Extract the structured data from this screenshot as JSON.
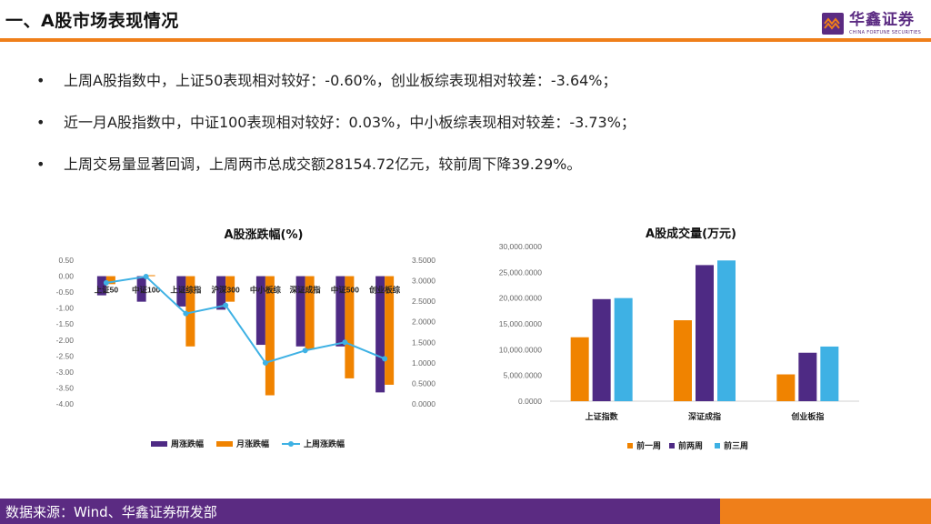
{
  "header": {
    "title": "一、A股市场表现情况",
    "logo_cn": "华鑫证券",
    "logo_en": "CHINA FORTUNE SECURITIES"
  },
  "bullets": [
    "上周A股指数中，上证50表现相对较好：-0.60%，创业板综表现相对较差：-3.64%；",
    "近一月A股指数中，中证100表现相对较好：0.03%，中小板综表现相对较差：-3.73%；",
    "上周交易量显著回调，上周两市总成交额28154.72亿元，较前周下降39.29%。"
  ],
  "bullet_symbol": "•",
  "footer": {
    "source": "数据来源：Wind、华鑫证券研发部"
  },
  "colors": {
    "purple": "#4e2a84",
    "orange": "#f08300",
    "cyan": "#3eb1e4",
    "brand_orange": "#ef7f1a",
    "brand_purple": "#5b2b82"
  },
  "chart_data": [
    {
      "type": "bar",
      "title": "A股涨跌幅(%)",
      "categories": [
        "上证50",
        "中证100",
        "上证综指",
        "沪深300",
        "中小板综",
        "深证成指",
        "中证500",
        "创业板综"
      ],
      "series": [
        {
          "name": "周涨跌幅",
          "type": "bar",
          "axis": "left",
          "values": [
            -0.6,
            -0.8,
            -0.95,
            -1.05,
            -2.15,
            -2.2,
            -2.2,
            -3.64
          ]
        },
        {
          "name": "月涨跌幅",
          "type": "bar",
          "axis": "left",
          "values": [
            -0.25,
            0.03,
            -2.2,
            -0.8,
            -3.73,
            -2.3,
            -3.2,
            -3.4
          ]
        },
        {
          "name": "上周涨跌幅",
          "type": "line",
          "axis": "right",
          "values": [
            2.95,
            3.1,
            2.2,
            2.4,
            1.0,
            1.3,
            1.5,
            1.1
          ]
        }
      ],
      "y_left": {
        "ticks": [
          "0.50",
          "0.00",
          "-0.50",
          "-1.00",
          "-1.50",
          "-2.00",
          "-2.50",
          "-3.00",
          "-3.50",
          "-4.00"
        ],
        "min": -4.0,
        "max": 0.5
      },
      "y_right": {
        "ticks": [
          "3.5000",
          "3.0000",
          "2.5000",
          "2.0000",
          "1.5000",
          "1.0000",
          "0.5000",
          "0.0000"
        ],
        "min": 0.0,
        "max": 3.5
      },
      "grid": false,
      "legend": "bottom"
    },
    {
      "type": "bar",
      "title": "A股成交量(万元)",
      "categories": [
        "上证指数",
        "深证成指",
        "创业板指"
      ],
      "series": [
        {
          "name": "前一周",
          "values": [
            12400,
            15700,
            5200
          ]
        },
        {
          "name": "前两周",
          "values": [
            19800,
            26400,
            9400
          ]
        },
        {
          "name": "前三周",
          "values": [
            20000,
            27300,
            10600
          ]
        }
      ],
      "y_axis": {
        "ticks": [
          "30,000.0000",
          "25,000.0000",
          "20,000.0000",
          "15,000.0000",
          "10,000.0000",
          "5,000.0000",
          "0.0000"
        ],
        "min": 0,
        "max": 30000
      },
      "grid": false,
      "legend": "bottom"
    }
  ]
}
